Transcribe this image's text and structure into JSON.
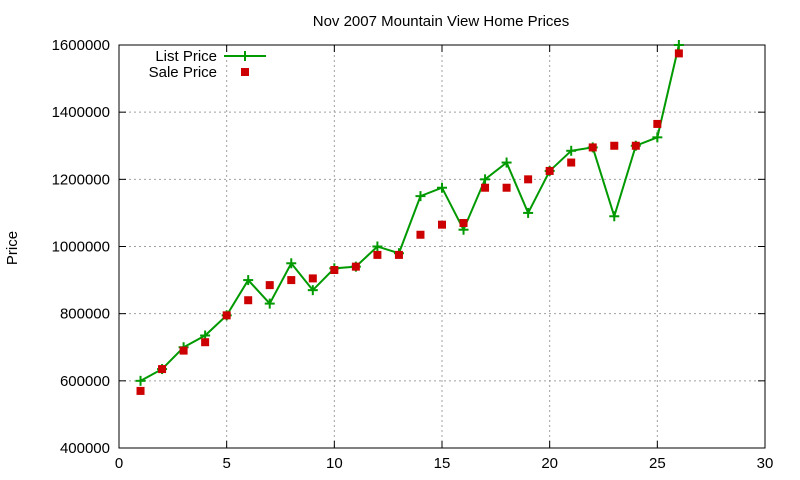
{
  "chart_data": {
    "type": "line",
    "title": "Nov 2007 Mountain View Home Prices",
    "xlabel": "",
    "ylabel": "Price",
    "xlim": [
      0,
      30
    ],
    "ylim": [
      400000,
      1600000
    ],
    "x_ticks": [
      0,
      5,
      10,
      15,
      20,
      25,
      30
    ],
    "y_ticks": [
      400000,
      600000,
      800000,
      1000000,
      1200000,
      1400000,
      1600000
    ],
    "grid": true,
    "legend_position": "top-left",
    "series": [
      {
        "name": "List Price",
        "style": "line-with-plus-markers",
        "color": "#009900",
        "x": [
          1,
          2,
          3,
          4,
          5,
          6,
          7,
          8,
          9,
          10,
          11,
          12,
          13,
          14,
          15,
          16,
          17,
          18,
          19,
          20,
          21,
          22,
          23,
          24,
          25,
          26
        ],
        "y": [
          600000,
          635000,
          700000,
          735000,
          795000,
          900000,
          830000,
          950000,
          870000,
          935000,
          940000,
          1000000,
          980000,
          1150000,
          1175000,
          1050000,
          1200000,
          1250000,
          1100000,
          1225000,
          1285000,
          1295000,
          1090000,
          1300000,
          1325000,
          1600000
        ]
      },
      {
        "name": "Sale Price",
        "style": "square-markers",
        "color": "#cc0000",
        "x": [
          1,
          2,
          3,
          4,
          5,
          6,
          7,
          8,
          9,
          10,
          11,
          12,
          13,
          14,
          15,
          16,
          17,
          18,
          19,
          20,
          21,
          22,
          23,
          24,
          25,
          26
        ],
        "y": [
          570000,
          635000,
          690000,
          715000,
          795000,
          840000,
          885000,
          900000,
          905000,
          930000,
          940000,
          975000,
          975000,
          1035000,
          1065000,
          1070000,
          1175000,
          1175000,
          1200000,
          1225000,
          1250000,
          1295000,
          1300000,
          1300000,
          1365000,
          1575000
        ]
      }
    ]
  }
}
